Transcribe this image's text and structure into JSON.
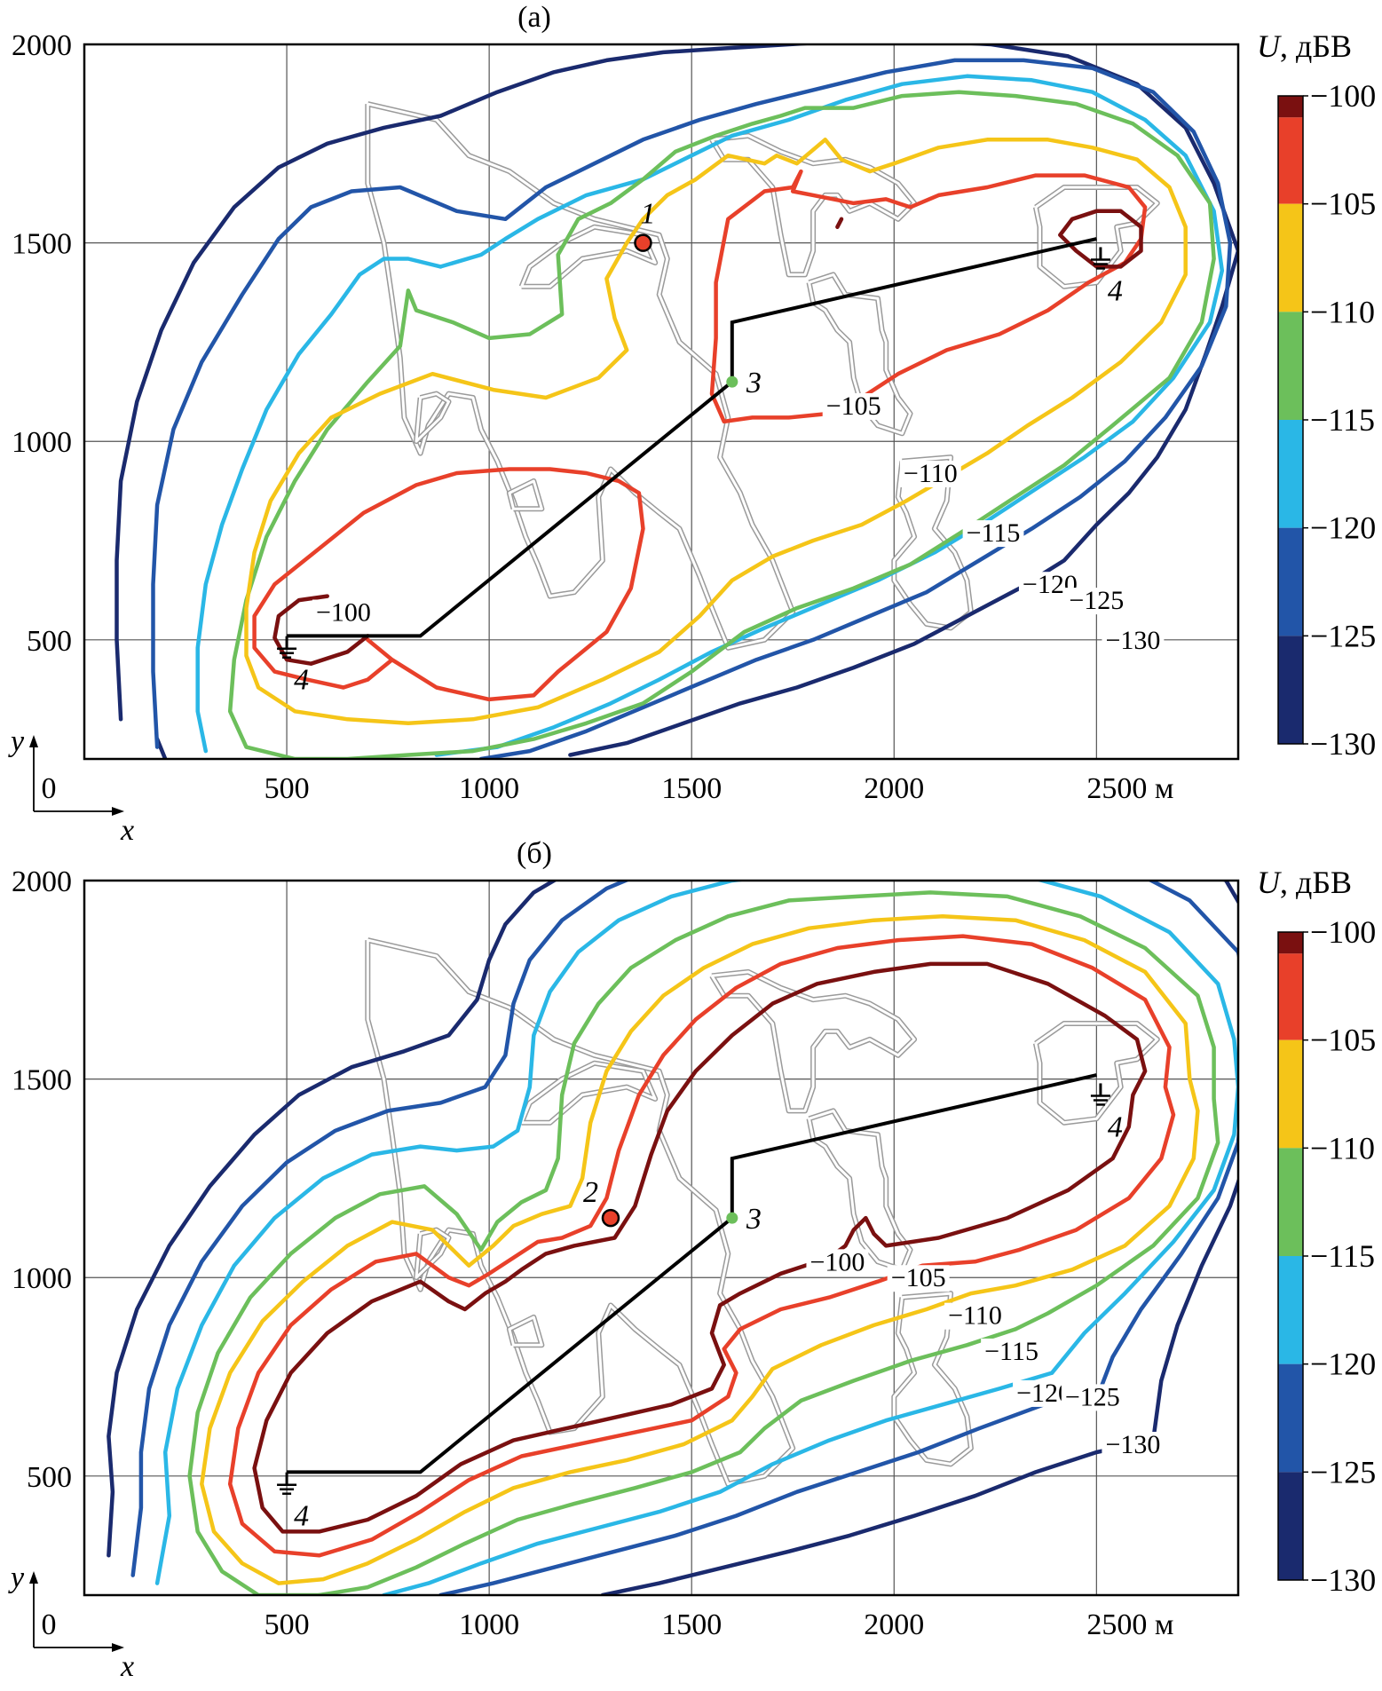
{
  "figure": {
    "axis_unit": "м",
    "x_axis_symbol": "x",
    "y_axis_symbol": "y",
    "origin_label": "0",
    "colorbar_title": "U, дБВ",
    "colorbar_title_symbol": "U",
    "colorbar_title_unit": ", дБВ",
    "colorbar_ticks": [
      "−100",
      "−105",
      "−110",
      "−115",
      "−120",
      "−125",
      "−130"
    ]
  },
  "chart_data": [
    {
      "panel_label": "(а)",
      "type": "contour",
      "xlim": [
        0,
        2850
      ],
      "ylim": [
        200,
        2000
      ],
      "x_ticks": [
        500,
        1000,
        1500,
        2000,
        2500
      ],
      "x_tick_labels": [
        "500",
        "1000",
        "1500",
        "2000",
        "2500 м"
      ],
      "y_ticks": [
        500,
        1000,
        1500,
        2000
      ],
      "y_tick_labels": [
        "500",
        "1000",
        "1500",
        "2000"
      ],
      "grid": true,
      "colorbar": {
        "title": "U, дБВ",
        "range": [
          -130,
          -100
        ],
        "ticks": [
          -100,
          -105,
          -110,
          -115,
          -120,
          -125,
          -130
        ]
      },
      "levels": [
        {
          "level": -100,
          "label": "−100",
          "color": "#7a1010"
        },
        {
          "level": -105,
          "label": "−105",
          "color": "#e8402a"
        },
        {
          "level": -110,
          "label": "−110",
          "color": "#f5c518"
        },
        {
          "level": -115,
          "label": "−115",
          "color": "#6cbf5b"
        },
        {
          "level": -120,
          "label": "−120",
          "color": "#2ab7e6"
        },
        {
          "level": -125,
          "label": "−125",
          "color": "#2255a8"
        },
        {
          "level": -130,
          "label": "−130",
          "color": "#1a2a6e"
        }
      ],
      "contour_labels": [
        {
          "text": "−100",
          "x": 640,
          "y": 570
        },
        {
          "text": "−105",
          "x": 1900,
          "y": 1090
        },
        {
          "text": "−110",
          "x": 2090,
          "y": 920
        },
        {
          "text": "−115",
          "x": 2245,
          "y": 770
        },
        {
          "text": "−120",
          "x": 2385,
          "y": 640
        },
        {
          "text": "−125",
          "x": 2500,
          "y": 600
        },
        {
          "text": "−130",
          "x": 2590,
          "y": 500
        }
      ],
      "points": [
        {
          "label": "1",
          "x": 1380,
          "y": 1500,
          "kind": "source"
        },
        {
          "label": "3",
          "x": 1600,
          "y": 1150,
          "kind": "node"
        },
        {
          "label": "4",
          "x": 500,
          "y": 460,
          "kind": "ground"
        },
        {
          "label": "4",
          "x": 2510,
          "y": 1440,
          "kind": "ground"
        }
      ],
      "line_path": [
        [
          500,
          510
        ],
        [
          830,
          510
        ],
        [
          1600,
          1150
        ],
        [
          1600,
          1300
        ],
        [
          2500,
          1510
        ]
      ]
    },
    {
      "panel_label": "(б)",
      "type": "contour",
      "xlim": [
        0,
        2850
      ],
      "ylim": [
        200,
        2000
      ],
      "x_ticks": [
        500,
        1000,
        1500,
        2000,
        2500
      ],
      "x_tick_labels": [
        "500",
        "1000",
        "1500",
        "2000",
        "2500 м"
      ],
      "y_ticks": [
        500,
        1000,
        1500,
        2000
      ],
      "y_tick_labels": [
        "500",
        "1000",
        "1500",
        "2000"
      ],
      "grid": true,
      "colorbar": {
        "title": "U, дБВ",
        "range": [
          -130,
          -100
        ],
        "ticks": [
          -100,
          -105,
          -110,
          -115,
          -120,
          -125,
          -130
        ]
      },
      "levels": [
        {
          "level": -100,
          "label": "−100",
          "color": "#7a1010"
        },
        {
          "level": -105,
          "label": "−105",
          "color": "#e8402a"
        },
        {
          "level": -110,
          "label": "−110",
          "color": "#f5c518"
        },
        {
          "level": -115,
          "label": "−115",
          "color": "#6cbf5b"
        },
        {
          "level": -120,
          "label": "−120",
          "color": "#2ab7e6"
        },
        {
          "level": -125,
          "label": "−125",
          "color": "#2255a8"
        },
        {
          "level": -130,
          "label": "−130",
          "color": "#1a2a6e"
        }
      ],
      "contour_labels": [
        {
          "text": "−100",
          "x": 1860,
          "y": 1040
        },
        {
          "text": "−105",
          "x": 2060,
          "y": 1000
        },
        {
          "text": "−110",
          "x": 2200,
          "y": 905
        },
        {
          "text": "−115",
          "x": 2290,
          "y": 815
        },
        {
          "text": "−120",
          "x": 2370,
          "y": 710
        },
        {
          "text": "−125",
          "x": 2490,
          "y": 700
        },
        {
          "text": "−130",
          "x": 2590,
          "y": 580
        }
      ],
      "points": [
        {
          "label": "2",
          "x": 1300,
          "y": 1150,
          "kind": "source"
        },
        {
          "label": "3",
          "x": 1600,
          "y": 1150,
          "kind": "node"
        },
        {
          "label": "4",
          "x": 500,
          "y": 460,
          "kind": "ground"
        },
        {
          "label": "4",
          "x": 2510,
          "y": 1440,
          "kind": "ground"
        }
      ],
      "line_path": [
        [
          500,
          510
        ],
        [
          830,
          510
        ],
        [
          1600,
          1150
        ],
        [
          1600,
          1300
        ],
        [
          2500,
          1510
        ]
      ]
    }
  ]
}
